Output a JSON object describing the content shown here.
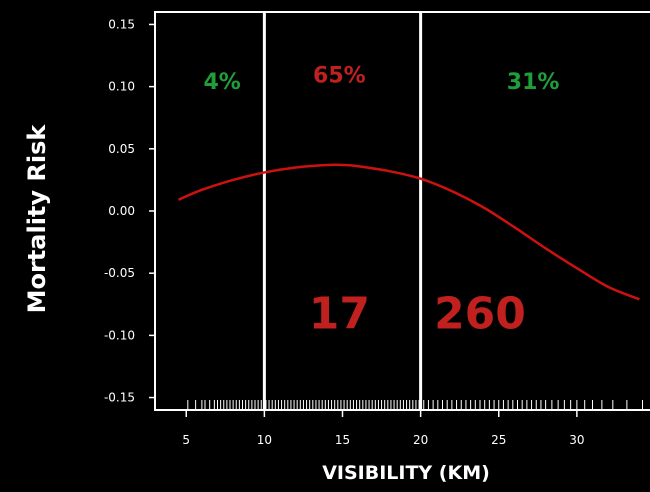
{
  "chart_data": {
    "type": "line",
    "xlabel": "VISIBILITY (KM)",
    "ylabel": "Mortality Risk",
    "xlim": [
      3,
      35
    ],
    "ylim": [
      -0.16,
      0.16
    ],
    "x_ticks": [
      5,
      10,
      15,
      20,
      25,
      30
    ],
    "y_ticks": [
      0.15,
      0.1,
      0.05,
      0.0,
      -0.05,
      -0.1,
      -0.15
    ],
    "y_tick_labels": [
      "0.15",
      "0.10",
      "0.05",
      "0.00",
      "-0.05",
      "-0.10",
      "-0.15"
    ],
    "vertical_lines": [
      10,
      20
    ],
    "series": [
      {
        "color": "#cc1111",
        "x": [
          4.5,
          6,
          8,
          10,
          12,
          14,
          15,
          16,
          18,
          20,
          22,
          24,
          26,
          28,
          30,
          32,
          34
        ],
        "y": [
          0.009,
          0.017,
          0.025,
          0.031,
          0.035,
          0.037,
          0.037,
          0.036,
          0.032,
          0.026,
          0.016,
          0.003,
          -0.013,
          -0.03,
          -0.046,
          -0.061,
          -0.071
        ]
      }
    ],
    "annotations": [
      {
        "text": "4%",
        "x": 7.3,
        "y": 0.103,
        "color": "#1f9e3a",
        "size": 22
      },
      {
        "text": "65%",
        "x": 14.8,
        "y": 0.108,
        "color": "#c0201e",
        "size": 22
      },
      {
        "text": "31%",
        "x": 27.2,
        "y": 0.103,
        "color": "#1f9e3a",
        "size": 22
      },
      {
        "text": "17",
        "x": 14.8,
        "y": -0.085,
        "color": "#c0201e",
        "size": 44
      },
      {
        "text": "260",
        "x": 23.8,
        "y": -0.085,
        "color": "#c0201e",
        "size": 44
      }
    ],
    "rug": [
      5.1,
      5.6,
      6.0,
      6.2,
      6.5,
      6.8,
      7.0,
      7.2,
      7.4,
      7.6,
      7.8,
      8.0,
      8.2,
      8.4,
      8.6,
      8.8,
      9.0,
      9.2,
      9.4,
      9.6,
      9.8,
      10.1,
      10.3,
      10.5,
      10.7,
      10.9,
      11.1,
      11.3,
      11.5,
      11.7,
      11.9,
      12.1,
      12.3,
      12.5,
      12.7,
      12.9,
      13.1,
      13.3,
      13.5,
      13.7,
      13.9,
      14.1,
      14.3,
      14.5,
      14.7,
      14.9,
      15.1,
      15.3,
      15.5,
      15.7,
      15.9,
      16.1,
      16.3,
      16.5,
      16.7,
      16.9,
      17.1,
      17.3,
      17.5,
      17.7,
      17.9,
      18.1,
      18.3,
      18.5,
      18.7,
      18.9,
      19.1,
      19.3,
      19.5,
      19.7,
      19.9,
      20.2,
      20.5,
      20.8,
      21.1,
      21.4,
      21.7,
      22.0,
      22.3,
      22.6,
      22.9,
      23.2,
      23.5,
      23.8,
      24.1,
      24.4,
      24.7,
      25.0,
      25.3,
      25.6,
      25.9,
      26.2,
      26.5,
      26.8,
      27.1,
      27.4,
      27.7,
      28.0,
      28.4,
      28.8,
      29.2,
      29.6,
      30.0,
      30.5,
      31.0,
      31.6,
      32.3,
      33.2,
      34.2
    ]
  }
}
